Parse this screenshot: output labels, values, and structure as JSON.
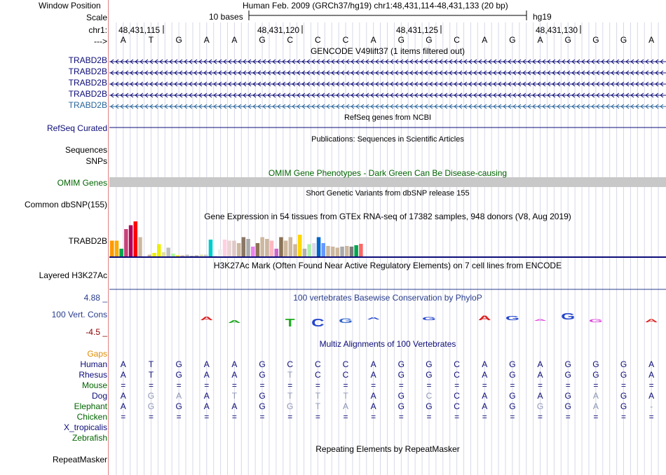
{
  "ruler": {
    "window_position_label": "Window Position",
    "window_position_value": "Human Feb. 2009 (GRCh37/hg19)   chr1:48,431,114-48,431,133 (20 bp)",
    "scale_label": "Scale",
    "scale_text": "10 bases",
    "assembly": "hg19",
    "chrom_label": "chr1:",
    "arrow_label": "--->",
    "positions": [
      "48,431,115",
      "48,431,120",
      "48,431,125",
      "48,431,130"
    ],
    "bases": [
      "A",
      "T",
      "G",
      "A",
      "A",
      "G",
      "C",
      "C",
      "C",
      "A",
      "G",
      "G",
      "C",
      "A",
      "G",
      "A",
      "G",
      "G",
      "G",
      "A"
    ]
  },
  "tracks": {
    "gencode": {
      "title": "GENCODE V49lift37 (1 items filtered out)",
      "items": [
        "TRABD2B",
        "TRABD2B",
        "TRABD2B",
        "TRABD2B",
        "TRABD2B"
      ],
      "colors": [
        "#0c0c78",
        "#0c0c78",
        "#0c0c78",
        "#0c0c78",
        "#28649b"
      ]
    },
    "refseq": {
      "title": "RefSeq genes from NCBI",
      "label": "RefSeq Curated",
      "color": "#0c0c78"
    },
    "publications": {
      "title": "Publications: Sequences in Scientific Articles",
      "label1": "Sequences",
      "label2": "SNPs"
    },
    "omim": {
      "title": "OMIM Gene Phenotypes - Dark Green Can Be Disease-causing",
      "label": "OMIM Genes",
      "color": "#006400",
      "bar_color": "#c8c8c8"
    },
    "dbsnp": {
      "title": "Short Genetic Variants from dbSNP release 155",
      "label": "Common dbSNP(155)"
    },
    "gtex": {
      "title": "Gene Expression in 54 tissues from GTEx RNA-seq of 17382 samples, 948 donors (V8, Aug 2019)",
      "label": "TRABD2B",
      "values": [
        0.45,
        0.45,
        0.22,
        0.78,
        0.89,
        1.0,
        0.55,
        0,
        0.05,
        0.1,
        0.35,
        0.12,
        0.25,
        0.08,
        0.03,
        0.03,
        0.05,
        0.02,
        0.03,
        0.05,
        0.05,
        0.48,
        0.02,
        0.2,
        0.48,
        0.45,
        0.45,
        0.38,
        0.55,
        0.5,
        0.28,
        0.38,
        0.55,
        0.5,
        0.45,
        0.22,
        0.55,
        0.45,
        0.55,
        0.35,
        0.62,
        0.22,
        0.35,
        0.38,
        0.55,
        0.38,
        0.3,
        0.28,
        0.25,
        0.28,
        0.3,
        0.28,
        0.32,
        0.36
      ],
      "colors": [
        "#ff9900",
        "#ffaa00",
        "#00a651",
        "#c6437a",
        "#b4005a",
        "#ff0000",
        "#cdb79e",
        "#c0c0c0",
        "#cdb79e",
        "#eeee00",
        "#eeee00",
        "#e0e0a0",
        "#bfbfbf",
        "#aaff99",
        "#eeee00",
        "#cdb79e",
        "#c0c0c0",
        "#aaaaaa",
        "#aaaaaa",
        "#ddddaa",
        "#cccccc",
        "#00cccc",
        "#dddddd",
        "#eeeeee",
        "#ffd0e0",
        "#ead6d6",
        "#e0c8c8",
        "#cdb79e",
        "#8b7765",
        "#aaaaaa",
        "#ee82ee",
        "#8b7355",
        "#cdb79e",
        "#cdb79e",
        "#ffb6c1",
        "#cc66cc",
        "#8b7355",
        "#cdb79e",
        "#cdb79e",
        "#cdb79e",
        "#ffd700",
        "#b0b0b0",
        "#aaeeaa",
        "#d8d8e8",
        "#0066cc",
        "#6699ff",
        "#cdb79e",
        "#cdb79e",
        "#cdb79e",
        "#aaaaaa",
        "#cdb79e",
        "#7a7a7a",
        "#00a651",
        "#ff6666"
      ]
    },
    "h3k27ac": {
      "title": "H3K27Ac Mark (Often Found Near Active Regulatory Elements) on 7 cell lines from ENCODE",
      "label": "Layered H3K27Ac"
    },
    "phylop": {
      "title": "100 vertebrates Basewise Conservation by PhyloP",
      "label": "100 Vert. Cons",
      "max": "4.88 _",
      "min": "-4.5 _",
      "max_color": "#283c8c",
      "min_color": "#8b0000"
    },
    "multiz": {
      "title": "Multiz Alignments of 100 Vertebrates",
      "gaps_label": "Gaps",
      "species": [
        {
          "name": "Human",
          "seq": [
            "A",
            "T",
            "G",
            "A",
            "A",
            "G",
            "C",
            "C",
            "C",
            "A",
            "G",
            "G",
            "C",
            "A",
            "G",
            "A",
            "G",
            "G",
            "G",
            "A"
          ]
        },
        {
          "name": "Rhesus",
          "seq": [
            "A",
            "T",
            "G",
            "A",
            "A",
            "G",
            "T",
            "C",
            "C",
            "A",
            "G",
            "G",
            "C",
            "A",
            "G",
            "A",
            "G",
            "G",
            "G",
            "A"
          ]
        },
        {
          "name": "Mouse",
          "seq": [
            "=",
            "=",
            "=",
            "=",
            "=",
            "=",
            "=",
            "=",
            "=",
            "=",
            "=",
            "=",
            "=",
            "=",
            "=",
            "=",
            "=",
            "=",
            "=",
            "="
          ]
        },
        {
          "name": "Dog",
          "seq": [
            "A",
            "G",
            "A",
            "A",
            "T",
            "G",
            "T",
            "T",
            "T",
            "A",
            "G",
            "C",
            "C",
            "A",
            "G",
            "A",
            "G",
            "A",
            "G",
            "A"
          ]
        },
        {
          "name": "Elephant",
          "seq": [
            "A",
            "G",
            "G",
            "A",
            "A",
            "G",
            "G",
            "T",
            "A",
            "A",
            "G",
            "G",
            "C",
            "A",
            "G",
            "G",
            "G",
            "A",
            "G",
            "-"
          ]
        },
        {
          "name": "Chicken",
          "seq": [
            "=",
            "=",
            "=",
            "=",
            "=",
            "=",
            "=",
            "=",
            "=",
            "=",
            "=",
            "=",
            "=",
            "=",
            "=",
            "=",
            "=",
            "=",
            "=",
            "="
          ]
        },
        {
          "name": "X_tropicalis",
          "seq": []
        },
        {
          "name": "Zebrafish",
          "seq": []
        }
      ]
    },
    "repeatmasker": {
      "title": "Repeating Elements by RepeatMasker",
      "label": "RepeatMasker"
    }
  }
}
